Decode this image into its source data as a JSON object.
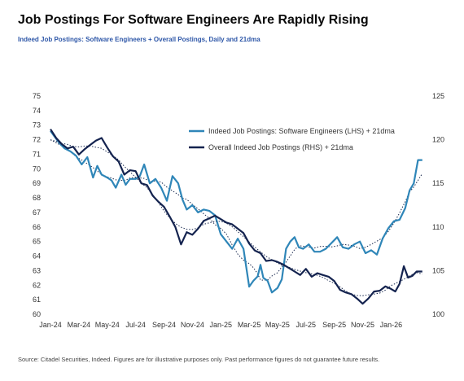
{
  "title": "Job Postings For Software Engineers Are Rapidly Rising",
  "subtitle": "Indeed Job Postings: Software Engineers + Overall Postings, Daily and 21dma",
  "footer": "Source: Citadel Securities, Indeed. Figures are for illustrative purposes only. Past performance figures do not guarantee future results.",
  "colors": {
    "software": "#2f86b8",
    "overall": "#14234f",
    "ma": "#1a2a50"
  },
  "chart_data": {
    "type": "line",
    "x_ticks": [
      "Jan-24",
      "Mar-24",
      "May-24",
      "Jul-24",
      "Sep-24",
      "Nov-24",
      "Jan-25",
      "Mar-25",
      "May-25",
      "Jul-25",
      "Sep-25",
      "Nov-25",
      "Jan-26"
    ],
    "y_left": {
      "ticks": [
        60,
        61,
        62,
        63,
        64,
        65,
        66,
        67,
        68,
        69,
        70,
        71,
        72,
        73,
        74,
        75
      ],
      "range": [
        60,
        75
      ]
    },
    "y_right": {
      "ticks": [
        100,
        105,
        110,
        115,
        120,
        125
      ],
      "range": [
        100,
        125
      ]
    },
    "x_range_months": [
      0,
      26.5
    ],
    "legend": [
      {
        "label": "Indeed Job Postings: Software Engineers (LHS) + 21dma",
        "series": "software"
      },
      {
        "label": "Overall Indeed Job Postings (RHS) + 21dma",
        "series": "overall"
      }
    ],
    "series": [
      {
        "key": "software",
        "name": "Indeed Job Postings: Software Engineers (LHS) + 21dma",
        "axis": "left",
        "x": [
          0,
          0.3,
          0.6,
          1,
          1.4,
          1.8,
          2.2,
          2.6,
          3,
          3.3,
          3.6,
          4,
          4.3,
          4.6,
          5,
          5.3,
          5.6,
          6,
          6.3,
          6.6,
          7,
          7.4,
          7.8,
          8.2,
          8.6,
          9,
          9.3,
          9.6,
          10,
          10.4,
          10.8,
          11.2,
          11.6,
          12,
          12.4,
          12.8,
          13.2,
          13.6,
          14,
          14.3,
          14.6,
          14.8,
          15,
          15.3,
          15.6,
          16,
          16.3,
          16.6,
          16.9,
          17.2,
          17.5,
          17.8,
          18.2,
          18.6,
          19,
          19.4,
          19.8,
          20.2,
          20.6,
          21,
          21.4,
          21.8,
          22.2,
          22.6,
          23,
          23.4,
          23.8,
          24.2,
          24.6,
          25,
          25.3,
          25.6,
          25.9,
          26.2
        ],
        "values": [
          72.6,
          72.2,
          71.8,
          71.4,
          71.2,
          70.9,
          70.3,
          70.8,
          69.4,
          70.2,
          69.6,
          69.4,
          69.2,
          68.7,
          69.6,
          68.9,
          69.3,
          69.3,
          69.5,
          70.3,
          69.0,
          69.3,
          68.7,
          67.8,
          69.5,
          69.0,
          67.9,
          67.2,
          67.5,
          67.0,
          67.2,
          67.1,
          66.8,
          65.5,
          65.0,
          64.5,
          65.2,
          64.5,
          61.9,
          62.3,
          62.6,
          63.4,
          62.5,
          62.3,
          61.5,
          61.8,
          62.4,
          64.5,
          65.0,
          65.3,
          64.6,
          64.5,
          64.8,
          64.3,
          64.3,
          64.5,
          64.9,
          65.3,
          64.6,
          64.5,
          64.8,
          65.0,
          64.2,
          64.4,
          64.1,
          65.2,
          65.9,
          66.4,
          66.5,
          67.3,
          68.5,
          69.0,
          70.6,
          70.6
        ]
      },
      {
        "key": "overall",
        "name": "Overall Indeed Job Postings (RHS) + 21dma",
        "axis": "right",
        "x": [
          0,
          0.4,
          0.8,
          1.2,
          1.6,
          2.0,
          2.4,
          2.8,
          3.2,
          3.6,
          4,
          4.4,
          4.8,
          5.2,
          5.6,
          6,
          6.4,
          6.8,
          7.2,
          7.6,
          8,
          8.4,
          8.8,
          9.2,
          9.6,
          10,
          10.4,
          10.8,
          11.2,
          11.6,
          12,
          12.4,
          12.8,
          13.2,
          13.6,
          14,
          14.4,
          14.8,
          15.2,
          15.6,
          16,
          16.4,
          16.8,
          17.2,
          17.6,
          18,
          18.4,
          18.8,
          19.2,
          19.6,
          20,
          20.4,
          20.8,
          21.2,
          21.6,
          22,
          22.4,
          22.8,
          23.2,
          23.6,
          24,
          24.3,
          24.6,
          24.9,
          25.2,
          25.5,
          25.8,
          26.2
        ],
        "values": [
          121.2,
          120.2,
          119.5,
          119.0,
          119.2,
          118.3,
          118.9,
          119.4,
          119.9,
          120.2,
          119.1,
          118.1,
          117.5,
          116.0,
          116.5,
          116.4,
          115.0,
          114.8,
          113.6,
          112.9,
          112.3,
          111.2,
          110.0,
          108.0,
          109.4,
          109.1,
          109.8,
          110.7,
          111.0,
          111.3,
          110.9,
          110.5,
          110.3,
          109.8,
          109.3,
          108.1,
          107.3,
          107.0,
          106.1,
          106.2,
          106.0,
          105.7,
          105.3,
          104.9,
          104.5,
          105.2,
          104.3,
          104.7,
          104.5,
          104.3,
          103.8,
          102.8,
          102.5,
          102.3,
          101.8,
          101.2,
          101.8,
          102.6,
          102.7,
          103.2,
          102.9,
          102.6,
          103.5,
          105.5,
          104.2,
          104.4,
          104.9,
          104.9
        ]
      }
    ]
  }
}
